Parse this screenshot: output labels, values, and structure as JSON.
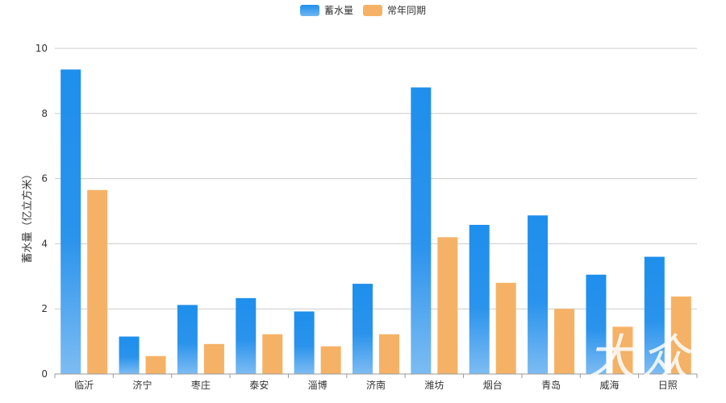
{
  "chart_data": {
    "type": "bar",
    "title": "",
    "xlabel": "",
    "ylabel": "蓄水量（亿立方米）",
    "ylim": [
      0,
      10
    ],
    "yticks": [
      0,
      2,
      4,
      6,
      8,
      10
    ],
    "grid": true,
    "legend_position": "top-center",
    "categories": [
      "临沂",
      "济宁",
      "枣庄",
      "泰安",
      "淄博",
      "济南",
      "潍坊",
      "烟台",
      "青岛",
      "威海",
      "日照"
    ],
    "series": [
      {
        "name": "蓄水量",
        "color": "#1e8fec",
        "values": [
          9.35,
          1.15,
          2.12,
          2.33,
          1.92,
          2.77,
          8.8,
          4.58,
          4.87,
          3.05,
          3.6
        ]
      },
      {
        "name": "常年同期",
        "color": "#f5b266",
        "values": [
          5.65,
          0.55,
          0.92,
          1.22,
          0.85,
          1.22,
          4.2,
          2.8,
          2.0,
          1.45,
          2.38
        ]
      }
    ]
  },
  "watermark": "大众"
}
